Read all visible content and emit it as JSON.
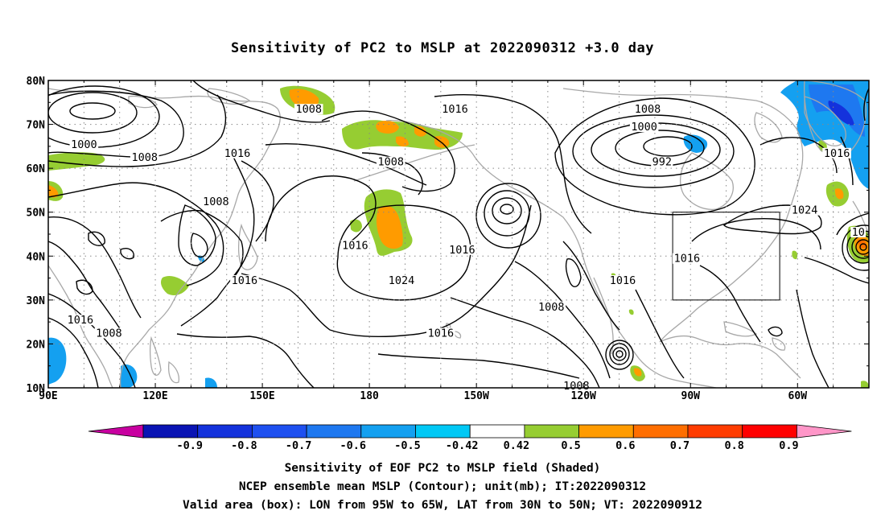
{
  "title": "Sensitivity of PC2 to MSLP at 2022090312 +3.0 day",
  "captions": [
    "Sensitivity of EOF PC2 to MSLP field (Shaded)",
    "NCEP ensemble mean MSLP (Contour); unit(mb); IT:2022090312",
    "Valid area (box): LON from 95W to 65W, LAT from 30N to 50N; VT: 2022090912"
  ],
  "map": {
    "lon_range": [
      90,
      320
    ],
    "lat_range": [
      10,
      80
    ],
    "grid": "dotted",
    "lon_ticks": [
      {
        "lon": 90,
        "label": "90E"
      },
      {
        "lon": 120,
        "label": "120E"
      },
      {
        "lon": 150,
        "label": "150E"
      },
      {
        "lon": 180,
        "label": "180"
      },
      {
        "lon": 210,
        "label": "150W"
      },
      {
        "lon": 240,
        "label": "120W"
      },
      {
        "lon": 270,
        "label": "90W"
      },
      {
        "lon": 300,
        "label": "60W"
      }
    ],
    "lat_ticks": [
      {
        "lat": 10,
        "label": "10N"
      },
      {
        "lat": 20,
        "label": "20N"
      },
      {
        "lat": 30,
        "label": "30N"
      },
      {
        "lat": 40,
        "label": "40N"
      },
      {
        "lat": 50,
        "label": "50N"
      },
      {
        "lat": 60,
        "label": "60N"
      },
      {
        "lat": 70,
        "label": "70N"
      },
      {
        "lat": 80,
        "label": "80N"
      }
    ],
    "valid_box": {
      "lon_min": 265,
      "lon_max": 295,
      "lat_min": 30,
      "lat_max": 50
    },
    "contour_labels": [
      {
        "text": "1000",
        "lon": 100,
        "lat": 65
      },
      {
        "text": "1008",
        "lon": 117,
        "lat": 62
      },
      {
        "text": "1008",
        "lon": 163,
        "lat": 73
      },
      {
        "text": "1008",
        "lon": 186,
        "lat": 61
      },
      {
        "text": "1016",
        "lon": 143,
        "lat": 63
      },
      {
        "text": "1008",
        "lon": 137,
        "lat": 52
      },
      {
        "text": "1016",
        "lon": 176,
        "lat": 42
      },
      {
        "text": "1016",
        "lon": 145,
        "lat": 34
      },
      {
        "text": "1024",
        "lon": 189,
        "lat": 34
      },
      {
        "text": "1016",
        "lon": 99,
        "lat": 25
      },
      {
        "text": "1008",
        "lon": 107,
        "lat": 22
      },
      {
        "text": "1016",
        "lon": 204,
        "lat": 73
      },
      {
        "text": "1016",
        "lon": 206,
        "lat": 41
      },
      {
        "text": "1016",
        "lon": 200,
        "lat": 22
      },
      {
        "text": "1008",
        "lon": 258,
        "lat": 73
      },
      {
        "text": "1000",
        "lon": 257,
        "lat": 69
      },
      {
        "text": "992",
        "lon": 262,
        "lat": 61
      },
      {
        "text": "1016",
        "lon": 311,
        "lat": 63
      },
      {
        "text": "1024",
        "lon": 302,
        "lat": 50
      },
      {
        "text": "1016",
        "lon": 269,
        "lat": 39
      },
      {
        "text": "1016",
        "lon": 251,
        "lat": 34
      },
      {
        "text": "1008",
        "lon": 231,
        "lat": 28
      },
      {
        "text": "1008",
        "lon": 238,
        "lat": 10
      },
      {
        "text": "10",
        "lon": 317,
        "lat": 45
      }
    ]
  },
  "colorbar": {
    "colors": [
      "#c800a0",
      "#0a14b4",
      "#1432dc",
      "#1e50f0",
      "#1e78f0",
      "#14a0f0",
      "#00c8f5",
      "#ffffff",
      "#96cd32",
      "#ff9b00",
      "#ff6e00",
      "#ff3c00",
      "#ff0000",
      "#ff96c8"
    ],
    "labels": [
      "-0.9",
      "-0.8",
      "-0.7",
      "-0.6",
      "-0.5",
      "-0.42",
      "0.42",
      "0.5",
      "0.6",
      "0.7",
      "0.8",
      "0.9"
    ]
  }
}
